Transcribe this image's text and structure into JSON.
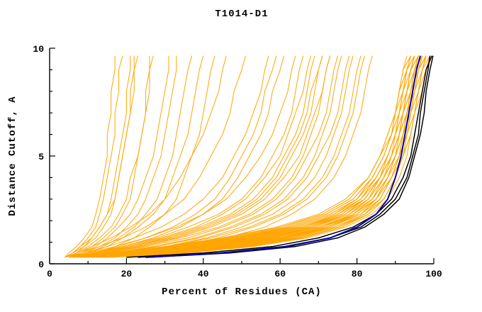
{
  "chart_data": {
    "type": "line",
    "title": "T1014-D1",
    "xlabel": "Percent of Residues (CA)",
    "ylabel": "Distance Cutoff, A",
    "xlim": [
      0,
      100
    ],
    "ylim": [
      0,
      10
    ],
    "x_ticks_major": [
      0,
      20,
      40,
      60,
      80,
      100
    ],
    "x_tick_minor_step": 10,
    "y_ticks_major": [
      0,
      5,
      10
    ],
    "y_tick_minor_step": 1,
    "grid": false,
    "legend": "none",
    "colors": {
      "model_orange": "#FFA500",
      "highlight_black": "#000000",
      "highlight_blue": "#0000AA",
      "axis": "#000000",
      "background": "#FFFFFF"
    },
    "y_levels": [
      0.3,
      0.5,
      0.8,
      1.2,
      1.7,
      2.3,
      3,
      4,
      5,
      6,
      7,
      8,
      9,
      9.65
    ],
    "series_orange": [
      [
        6,
        18,
        33,
        48,
        62,
        72,
        79,
        84,
        87,
        89,
        90,
        91,
        92,
        93
      ],
      [
        8,
        22,
        38,
        53,
        66,
        75,
        81,
        85,
        88,
        90,
        91,
        92,
        93,
        94
      ],
      [
        10,
        26,
        42,
        57,
        69,
        78,
        83,
        87,
        89,
        91,
        92,
        93,
        94,
        95
      ],
      [
        12,
        30,
        46,
        60,
        72,
        80,
        85,
        88,
        90,
        92,
        93,
        94,
        95,
        96
      ],
      [
        7,
        20,
        36,
        51,
        64,
        74,
        80,
        85,
        88,
        90,
        91,
        92,
        93,
        95
      ],
      [
        9,
        24,
        40,
        55,
        68,
        77,
        82,
        86,
        89,
        91,
        92,
        93,
        94,
        96
      ],
      [
        11,
        28,
        44,
        59,
        71,
        79,
        84,
        87,
        90,
        91,
        92,
        94,
        95,
        97
      ],
      [
        13,
        32,
        48,
        62,
        73,
        81,
        86,
        89,
        91,
        92,
        93,
        95,
        96,
        97
      ],
      [
        5,
        16,
        30,
        45,
        59,
        70,
        77,
        83,
        86,
        88,
        90,
        91,
        92,
        94
      ],
      [
        14,
        34,
        50,
        64,
        75,
        82,
        87,
        90,
        92,
        93,
        94,
        95,
        96,
        98
      ],
      [
        8,
        21,
        37,
        52,
        65,
        75,
        81,
        86,
        88,
        90,
        92,
        93,
        94,
        95
      ],
      [
        10,
        25,
        41,
        56,
        68,
        78,
        83,
        87,
        90,
        91,
        93,
        94,
        95,
        96
      ],
      [
        6,
        19,
        35,
        50,
        63,
        73,
        80,
        84,
        87,
        89,
        91,
        92,
        93,
        94
      ],
      [
        12,
        29,
        45,
        60,
        71,
        80,
        85,
        88,
        90,
        92,
        93,
        94,
        95,
        97
      ],
      [
        9,
        23,
        39,
        54,
        67,
        76,
        82,
        86,
        89,
        91,
        92,
        93,
        95,
        96
      ],
      [
        15,
        35,
        52,
        66,
        76,
        83,
        87,
        90,
        92,
        94,
        95,
        96,
        97,
        98
      ],
      [
        7,
        20,
        34,
        49,
        62,
        72,
        79,
        84,
        87,
        89,
        90,
        92,
        93,
        95
      ],
      [
        11,
        27,
        43,
        58,
        70,
        79,
        84,
        88,
        90,
        92,
        93,
        94,
        96,
        97
      ],
      [
        13,
        31,
        47,
        61,
        72,
        81,
        86,
        89,
        91,
        93,
        94,
        95,
        96,
        98
      ],
      [
        8,
        22,
        38,
        52,
        66,
        76,
        82,
        86,
        89,
        90,
        92,
        93,
        94,
        96
      ],
      [
        10,
        26,
        42,
        56,
        69,
        78,
        84,
        87,
        90,
        92,
        93,
        94,
        95,
        97
      ],
      [
        6,
        18,
        32,
        47,
        61,
        71,
        78,
        83,
        86,
        89,
        90,
        91,
        93,
        94
      ],
      [
        14,
        33,
        49,
        63,
        74,
        82,
        86,
        89,
        91,
        93,
        94,
        95,
        97,
        98
      ],
      [
        9,
        24,
        40,
        54,
        67,
        77,
        83,
        86,
        89,
        91,
        92,
        94,
        95,
        96
      ],
      [
        12,
        28,
        44,
        58,
        70,
        80,
        85,
        88,
        91,
        92,
        94,
        95,
        96,
        97
      ],
      [
        7,
        21,
        36,
        50,
        64,
        74,
        81,
        85,
        88,
        90,
        91,
        93,
        94,
        96
      ],
      [
        16,
        36,
        53,
        67,
        77,
        84,
        88,
        91,
        93,
        94,
        95,
        96,
        97,
        99
      ],
      [
        10,
        25,
        41,
        55,
        68,
        77,
        83,
        87,
        89,
        91,
        93,
        94,
        95,
        96
      ],
      [
        13,
        30,
        46,
        61,
        72,
        81,
        85,
        89,
        91,
        92,
        94,
        95,
        96,
        98
      ],
      [
        8,
        23,
        39,
        53,
        66,
        76,
        82,
        86,
        88,
        90,
        92,
        93,
        95,
        96
      ],
      [
        9,
        24,
        41,
        57,
        70,
        79,
        84,
        88,
        90,
        92,
        93,
        95,
        96,
        97
      ],
      [
        11,
        28,
        45,
        60,
        72,
        80,
        85,
        89,
        91,
        93,
        94,
        95,
        96,
        98
      ],
      [
        7,
        19,
        34,
        49,
        63,
        73,
        80,
        85,
        88,
        90,
        91,
        92,
        94,
        95
      ],
      [
        13,
        31,
        48,
        62,
        74,
        82,
        86,
        89,
        91,
        93,
        94,
        96,
        97,
        98
      ],
      [
        10,
        26,
        43,
        58,
        70,
        79,
        85,
        88,
        90,
        92,
        94,
        95,
        96,
        97
      ],
      [
        8,
        22,
        37,
        52,
        65,
        75,
        82,
        86,
        89,
        91,
        92,
        94,
        95,
        96
      ],
      [
        15,
        34,
        51,
        65,
        76,
        83,
        87,
        90,
        92,
        94,
        95,
        96,
        98,
        99
      ],
      [
        12,
        29,
        46,
        61,
        73,
        81,
        86,
        89,
        92,
        93,
        95,
        96,
        97,
        98
      ],
      [
        6,
        17,
        31,
        46,
        60,
        71,
        78,
        83,
        86,
        88,
        90,
        91,
        93,
        94
      ],
      [
        14,
        33,
        50,
        64,
        75,
        83,
        87,
        90,
        92,
        94,
        95,
        97,
        98,
        99
      ],
      [
        6,
        14,
        24,
        34,
        44,
        52,
        58,
        63,
        66,
        68,
        70,
        71,
        72,
        73
      ],
      [
        7,
        16,
        27,
        38,
        47,
        55,
        61,
        66,
        69,
        71,
        73,
        74,
        75,
        76
      ],
      [
        5,
        12,
        21,
        30,
        39,
        47,
        53,
        58,
        61,
        64,
        66,
        67,
        68,
        69
      ],
      [
        8,
        18,
        30,
        41,
        50,
        58,
        64,
        69,
        72,
        74,
        76,
        77,
        78,
        79
      ],
      [
        6,
        13,
        22,
        32,
        41,
        49,
        55,
        60,
        63,
        66,
        68,
        69,
        70,
        71
      ],
      [
        9,
        20,
        33,
        44,
        53,
        61,
        67,
        72,
        75,
        77,
        79,
        80,
        81,
        82
      ],
      [
        5,
        11,
        19,
        28,
        36,
        44,
        50,
        55,
        58,
        61,
        63,
        64,
        65,
        66
      ],
      [
        7,
        15,
        25,
        36,
        45,
        53,
        59,
        64,
        67,
        70,
        72,
        73,
        74,
        75
      ],
      [
        10,
        22,
        35,
        46,
        56,
        63,
        69,
        74,
        77,
        79,
        81,
        82,
        83,
        84
      ],
      [
        6,
        12,
        20,
        29,
        38,
        45,
        51,
        56,
        60,
        62,
        64,
        66,
        67,
        68
      ],
      [
        8,
        17,
        28,
        39,
        48,
        56,
        62,
        67,
        70,
        73,
        75,
        76,
        77,
        78
      ],
      [
        5,
        10,
        17,
        25,
        33,
        40,
        46,
        51,
        55,
        58,
        60,
        62,
        63,
        64
      ],
      [
        9,
        19,
        31,
        42,
        52,
        60,
        66,
        71,
        74,
        76,
        78,
        79,
        80,
        81
      ],
      [
        7,
        14,
        23,
        33,
        42,
        50,
        56,
        61,
        65,
        67,
        69,
        71,
        72,
        73
      ],
      [
        5,
        9,
        15,
        22,
        29,
        35,
        40,
        45,
        48,
        51,
        53,
        55,
        56,
        57
      ],
      [
        6,
        11,
        18,
        25,
        32,
        38,
        43,
        47,
        50,
        53,
        55,
        56,
        58,
        59
      ],
      [
        4,
        8,
        13,
        19,
        25,
        30,
        35,
        39,
        42,
        45,
        47,
        48,
        50,
        51
      ],
      [
        7,
        12,
        19,
        27,
        34,
        40,
        45,
        49,
        52,
        55,
        57,
        58,
        60,
        61
      ],
      [
        4,
        7,
        11,
        16,
        21,
        26,
        30,
        34,
        37,
        40,
        42,
        44,
        45,
        46
      ],
      [
        6,
        13,
        21,
        31,
        40,
        48,
        54,
        59,
        62,
        65,
        67,
        68,
        70,
        71
      ],
      [
        4,
        6,
        8,
        10,
        12,
        13,
        14,
        15,
        16,
        17,
        17,
        18,
        18,
        19
      ],
      [
        5,
        7,
        9,
        12,
        14,
        16,
        17,
        18,
        19,
        20,
        21,
        21,
        22,
        22
      ],
      [
        4,
        6,
        9,
        11,
        13,
        15,
        16,
        17,
        18,
        19,
        20,
        20,
        21,
        21
      ],
      [
        6,
        8,
        11,
        14,
        17,
        19,
        21,
        22,
        23,
        24,
        25,
        26,
        26,
        27
      ],
      [
        5,
        7,
        10,
        13,
        16,
        18,
        20,
        21,
        23,
        24,
        25,
        25,
        26,
        26
      ],
      [
        6,
        9,
        13,
        17,
        20,
        23,
        25,
        27,
        29,
        30,
        31,
        32,
        33,
        33
      ],
      [
        7,
        10,
        14,
        18,
        22,
        25,
        28,
        30,
        32,
        33,
        34,
        35,
        36,
        37
      ],
      [
        4,
        5,
        7,
        9,
        11,
        12,
        13,
        14,
        15,
        15,
        16,
        16,
        17,
        17
      ],
      [
        8,
        12,
        17,
        22,
        26,
        30,
        33,
        35,
        37,
        39,
        40,
        41,
        42,
        43
      ],
      [
        5,
        8,
        12,
        15,
        18,
        21,
        23,
        25,
        27,
        28,
        29,
        30,
        31,
        31
      ],
      [
        6,
        10,
        15,
        19,
        23,
        27,
        30,
        32,
        34,
        36,
        37,
        38,
        39,
        40
      ],
      [
        4,
        6,
        8,
        11,
        13,
        15,
        17,
        18,
        19,
        20,
        21,
        22,
        22,
        23
      ]
    ],
    "series_black": [
      [
        20,
        40,
        58,
        70,
        79,
        85,
        89,
        92,
        94,
        95,
        96,
        97,
        98,
        99.5
      ],
      [
        23,
        44,
        61,
        73,
        81,
        86,
        90,
        93,
        94.5,
        96,
        96.5,
        97.5,
        98.5,
        99
      ],
      [
        26,
        47,
        64,
        75,
        82,
        87,
        91,
        93.5,
        95,
        96.5,
        97.5,
        98,
        99,
        99.8
      ]
    ],
    "series_blue": [
      [
        25,
        45,
        62,
        73,
        80,
        85,
        88,
        90,
        91.5,
        92.5,
        93.5,
        94.5,
        95.5,
        96.5
      ]
    ]
  }
}
